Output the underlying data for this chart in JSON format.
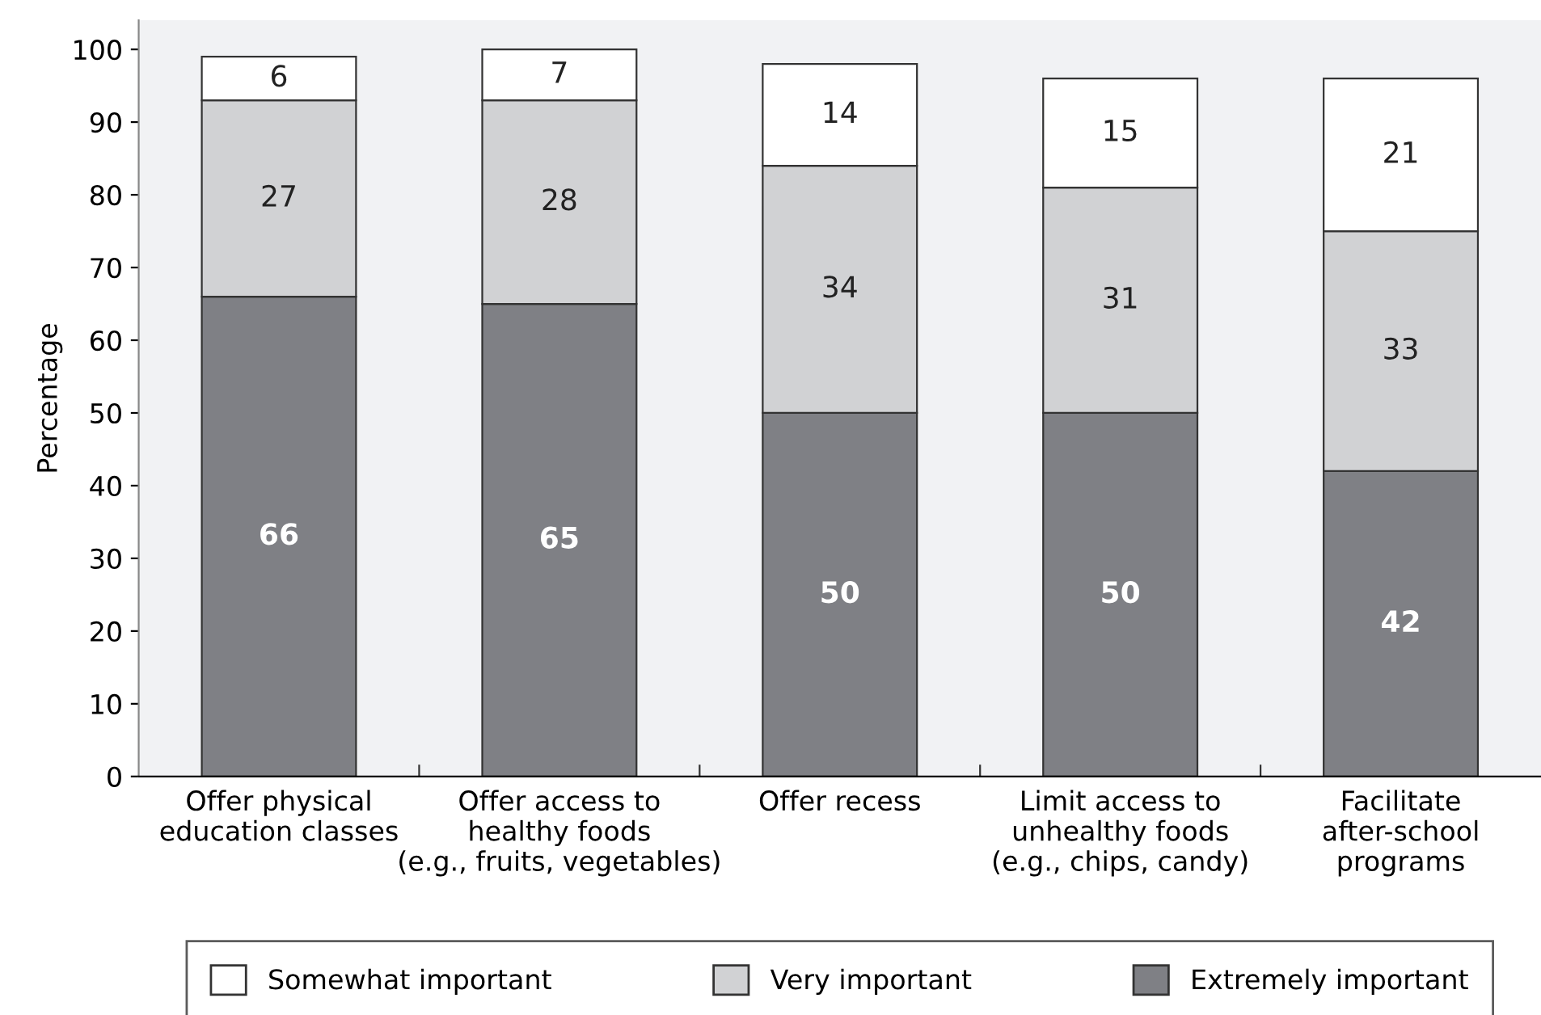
{
  "chart_data": {
    "type": "bar",
    "stacked": true,
    "ylabel": "Percentage",
    "categories": [
      "Offer physical\neducation classes",
      "Offer access to\nhealthy foods\n(e.g., fruits, vegetables)",
      "Offer recess",
      "Limit access to\nunhealthy foods\n(e.g., chips, candy)",
      "Facilitate\nafter-school\nprograms"
    ],
    "series": [
      {
        "name": "Extremely important",
        "color": "#7f8085",
        "values": [
          66,
          65,
          50,
          50,
          42
        ]
      },
      {
        "name": "Very important",
        "color": "#d1d2d4",
        "values": [
          27,
          28,
          34,
          31,
          33
        ]
      },
      {
        "name": "Somewhat important",
        "color": "#ffffff",
        "values": [
          6,
          7,
          14,
          15,
          21
        ]
      }
    ],
    "ylim": [
      0,
      104
    ],
    "yticks": [
      0,
      10,
      20,
      30,
      40,
      50,
      60,
      70,
      80,
      90,
      100
    ],
    "data_labels": true,
    "legend": "bottom",
    "grid": false
  }
}
